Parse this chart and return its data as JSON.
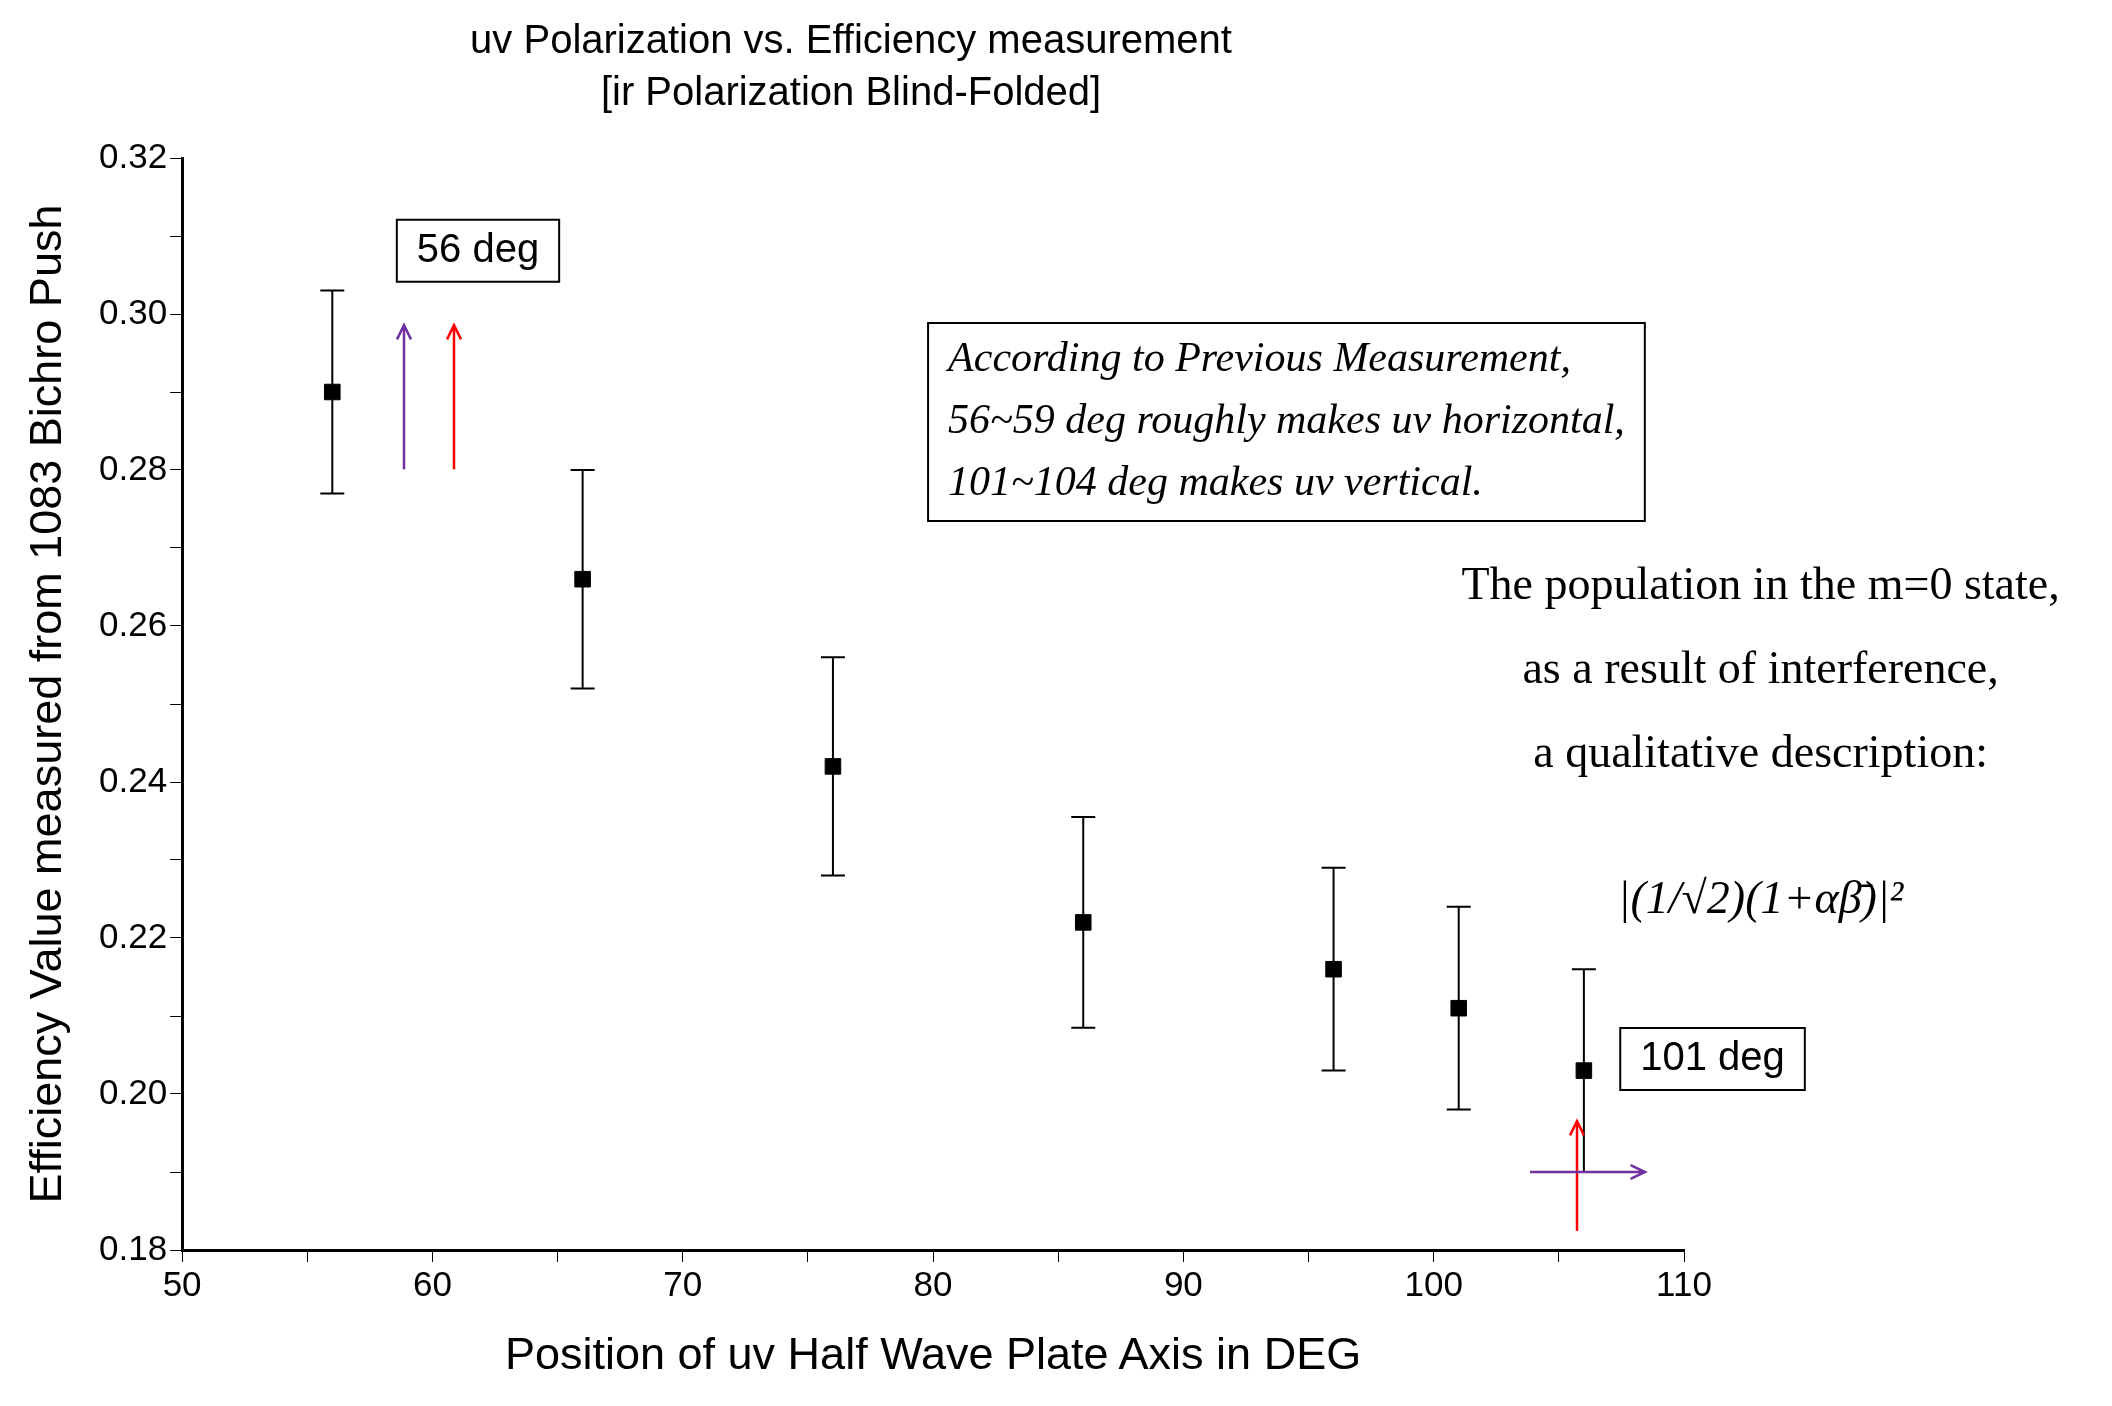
{
  "chart_data": {
    "type": "scatter",
    "title": "uv Polarization vs. Efficiency measurement",
    "subtitle": "[ir Polarization Blind-Folded]",
    "xlabel": "Position of uv Half Wave Plate Axis in DEG",
    "ylabel": "Efficiency Value measured from 1083 Bichro Push",
    "x": [
      56,
      66,
      76,
      86,
      96,
      101,
      106
    ],
    "values": [
      0.29,
      0.266,
      0.242,
      0.222,
      0.216,
      0.211,
      0.203
    ],
    "errors": [
      0.013,
      0.014,
      0.014,
      0.0135,
      0.013,
      0.013,
      0.013
    ],
    "color": "#000000",
    "marker": "square",
    "grid": false,
    "legend": false,
    "xlim": [
      50,
      110
    ],
    "xticks": [
      50,
      {
        "value": 55,
        "label": null
      },
      60,
      {
        "value": 65,
        "label": null
      },
      70,
      {
        "value": 75,
        "label": null
      },
      80,
      {
        "value": 85,
        "label": null
      },
      90,
      {
        "value": 95,
        "label": null
      },
      100,
      {
        "value": 105,
        "label": null
      },
      110
    ],
    "ylim": [
      0.18,
      0.32
    ],
    "yticks": [
      {
        "value": 0.18,
        "label": "0.18"
      },
      {
        "value": 0.19,
        "label": null
      },
      {
        "value": 0.2,
        "label": "0.20"
      },
      {
        "value": 0.21,
        "label": null
      },
      {
        "value": 0.22,
        "label": "0.22"
      },
      {
        "value": 0.23,
        "label": null
      },
      {
        "value": 0.24,
        "label": "0.24"
      },
      {
        "value": 0.25,
        "label": null
      },
      {
        "value": 0.26,
        "label": "0.26"
      },
      {
        "value": 0.27,
        "label": null
      },
      {
        "value": 0.28,
        "label": "0.28"
      },
      {
        "value": 0.29,
        "label": null
      },
      {
        "value": 0.3,
        "label": "0.30"
      },
      {
        "value": 0.31,
        "label": null
      },
      {
        "value": 0.32,
        "label": "0.32"
      }
    ],
    "annotations": [
      "56 deg",
      "According to Previous Measurement,\n56~59 deg roughly makes uv horizontal,\n101~104 deg makes uv vertical.",
      "The population in the m=0 state,\nas a result of interference,\na qualitative description:",
      "|(1/√2)(1+αβ̄)|²",
      "101 deg"
    ]
  }
}
